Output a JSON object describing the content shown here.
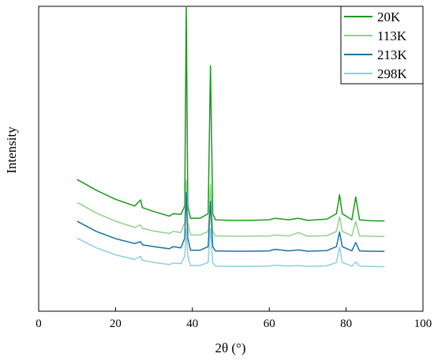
{
  "chart_data": {
    "type": "line",
    "xlabel": "2θ (°)",
    "ylabel": "Intensity",
    "xlim": [
      0,
      100
    ],
    "xticks": [
      0,
      20,
      40,
      60,
      80,
      100
    ],
    "y_ticks_shown": false,
    "grid": false,
    "legend_position": "top-right",
    "series": [
      {
        "name": "20K",
        "color": "#1a9a1a",
        "x": [
          10,
          15,
          20,
          25,
          26.5,
          27,
          30,
          34,
          35,
          37,
          38.0,
          38.4,
          38.8,
          39.5,
          42,
          44.1,
          44.7,
          45.3,
          46,
          50,
          55,
          60,
          61.5,
          65,
          67.6,
          70,
          75,
          77.5,
          78.3,
          79.0,
          81.5,
          82.5,
          83.5,
          86,
          90
        ],
        "y_norm": [
          0.432,
          0.397,
          0.367,
          0.345,
          0.365,
          0.34,
          0.327,
          0.312,
          0.32,
          0.318,
          0.345,
          1.0,
          0.345,
          0.305,
          0.305,
          0.32,
          0.805,
          0.32,
          0.3,
          0.298,
          0.298,
          0.3,
          0.305,
          0.3,
          0.305,
          0.298,
          0.302,
          0.32,
          0.382,
          0.32,
          0.3,
          0.375,
          0.3,
          0.297,
          0.296
        ]
      },
      {
        "name": "113K",
        "color": "#90d48a",
        "x": [
          10,
          15,
          20,
          25,
          26.5,
          27,
          30,
          34,
          35,
          37,
          38.0,
          38.4,
          38.8,
          39.5,
          42,
          44.1,
          44.7,
          45.3,
          46,
          50,
          55,
          60,
          61.5,
          65,
          67.6,
          70,
          75,
          77.5,
          78.3,
          79.0,
          81.5,
          82.5,
          83.5,
          86,
          90
        ],
        "y_norm": [
          0.357,
          0.322,
          0.295,
          0.275,
          0.283,
          0.272,
          0.263,
          0.255,
          0.262,
          0.258,
          0.29,
          0.43,
          0.29,
          0.25,
          0.25,
          0.262,
          0.415,
          0.262,
          0.247,
          0.246,
          0.246,
          0.247,
          0.25,
          0.247,
          0.258,
          0.246,
          0.248,
          0.262,
          0.31,
          0.262,
          0.247,
          0.295,
          0.247,
          0.246,
          0.245
        ]
      },
      {
        "name": "213K",
        "color": "#1a72a4",
        "x": [
          10,
          15,
          20,
          25,
          26.5,
          27,
          30,
          34,
          35,
          37,
          38.0,
          38.4,
          38.8,
          39.5,
          42,
          44.1,
          44.7,
          45.3,
          46,
          50,
          55,
          60,
          61.5,
          65,
          67.6,
          70,
          75,
          77.5,
          78.3,
          79.0,
          81.5,
          82.5,
          83.5,
          86,
          90
        ],
        "y_norm": [
          0.295,
          0.262,
          0.238,
          0.222,
          0.228,
          0.218,
          0.212,
          0.205,
          0.212,
          0.208,
          0.24,
          0.39,
          0.24,
          0.2,
          0.2,
          0.212,
          0.36,
          0.212,
          0.198,
          0.197,
          0.197,
          0.198,
          0.203,
          0.198,
          0.201,
          0.197,
          0.199,
          0.212,
          0.26,
          0.212,
          0.198,
          0.225,
          0.198,
          0.197,
          0.196
        ]
      },
      {
        "name": "298K",
        "color": "#8fcfe0",
        "x": [
          10,
          15,
          20,
          25,
          26.5,
          27,
          30,
          34,
          35,
          37,
          38.0,
          38.4,
          38.8,
          39.5,
          42,
          44.1,
          44.7,
          45.3,
          46,
          50,
          55,
          60,
          61.5,
          65,
          67.6,
          70,
          75,
          77.5,
          78.3,
          79.0,
          81.5,
          82.5,
          83.5,
          86,
          90
        ],
        "y_norm": [
          0.24,
          0.208,
          0.185,
          0.17,
          0.18,
          0.167,
          0.16,
          0.153,
          0.158,
          0.156,
          0.18,
          0.27,
          0.18,
          0.15,
          0.15,
          0.16,
          0.27,
          0.16,
          0.148,
          0.147,
          0.147,
          0.148,
          0.151,
          0.148,
          0.15,
          0.147,
          0.149,
          0.16,
          0.21,
          0.16,
          0.148,
          0.162,
          0.148,
          0.147,
          0.146
        ]
      }
    ]
  }
}
